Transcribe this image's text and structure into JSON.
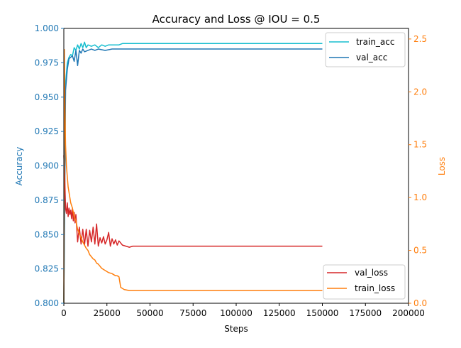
{
  "chart_data": {
    "type": "line",
    "title": "Accuracy and Loss @ IOU = 0.5",
    "xlabel": "Steps",
    "ylabel_left": "Accuracy",
    "ylabel_right": "Loss",
    "xlim": [
      0,
      200000
    ],
    "ylim_left": [
      0.8,
      1.0
    ],
    "ylim_right": [
      0.0,
      2.6
    ],
    "x_ticks": [
      0,
      25000,
      50000,
      75000,
      100000,
      125000,
      150000,
      175000,
      200000
    ],
    "x_tick_labels": [
      "0",
      "25000",
      "50000",
      "75000",
      "100000",
      "125000",
      "150000",
      "175000",
      "200000"
    ],
    "y_left_ticks": [
      0.8,
      0.825,
      0.85,
      0.875,
      0.9,
      0.925,
      0.95,
      0.975,
      1.0
    ],
    "y_left_tick_labels": [
      "0.800",
      "0.825",
      "0.850",
      "0.875",
      "0.900",
      "0.925",
      "0.950",
      "0.975",
      "1.000"
    ],
    "y_right_ticks": [
      0.0,
      0.5,
      1.0,
      1.5,
      2.0,
      2.5
    ],
    "y_right_tick_labels": [
      "0.0",
      "0.5",
      "1.0",
      "1.5",
      "2.0",
      "2.5"
    ],
    "left_axis_color": "#1f77b4",
    "right_axis_color": "#ff7f0e",
    "legend_top": {
      "placement": "top-right",
      "entries": [
        "train_acc",
        "val_acc"
      ]
    },
    "legend_bottom": {
      "placement": "bottom-right",
      "entries": [
        "val_loss",
        "train_loss"
      ]
    },
    "series": [
      {
        "name": "train_acc",
        "axis": "left",
        "color": "#17becf",
        "x": [
          0,
          1000,
          2000,
          3000,
          4000,
          5000,
          6000,
          7000,
          8000,
          9000,
          10000,
          11000,
          12000,
          13000,
          14000,
          16000,
          18000,
          20000,
          22000,
          24000,
          26000,
          28000,
          30000,
          32000,
          34000,
          36000,
          40000,
          50000,
          75000,
          100000,
          125000,
          150000
        ],
        "y": [
          0.8,
          0.96,
          0.975,
          0.979,
          0.981,
          0.98,
          0.986,
          0.984,
          0.988,
          0.985,
          0.989,
          0.986,
          0.99,
          0.986,
          0.988,
          0.987,
          0.988,
          0.986,
          0.988,
          0.987,
          0.988,
          0.988,
          0.988,
          0.988,
          0.989,
          0.989,
          0.989,
          0.989,
          0.989,
          0.989,
          0.989,
          0.989
        ]
      },
      {
        "name": "val_acc",
        "axis": "left",
        "color": "#1f77b4",
        "x": [
          0,
          1000,
          2000,
          3000,
          4000,
          5000,
          6000,
          7000,
          8000,
          9000,
          10000,
          11000,
          12000,
          14000,
          16000,
          18000,
          20000,
          24000,
          28000,
          32000,
          36000,
          40000,
          50000,
          75000,
          100000,
          125000,
          150000
        ],
        "y": [
          0.8,
          0.955,
          0.97,
          0.978,
          0.979,
          0.98,
          0.976,
          0.984,
          0.973,
          0.984,
          0.982,
          0.985,
          0.983,
          0.984,
          0.985,
          0.984,
          0.985,
          0.984,
          0.985,
          0.985,
          0.985,
          0.985,
          0.985,
          0.985,
          0.985,
          0.985,
          0.985
        ]
      },
      {
        "name": "val_loss",
        "axis": "right",
        "color": "#d62728",
        "x": [
          0,
          500,
          1000,
          1500,
          2000,
          2500,
          3000,
          3500,
          4000,
          4500,
          5000,
          5500,
          6000,
          6500,
          7000,
          8000,
          9000,
          10000,
          11000,
          12000,
          13000,
          14000,
          15000,
          16000,
          17000,
          18000,
          19000,
          20000,
          21000,
          22000,
          23000,
          24000,
          25000,
          26000,
          27000,
          28000,
          29000,
          30000,
          31000,
          32000,
          34000,
          36000,
          38000,
          40000,
          45000,
          50000,
          75000,
          100000,
          125000,
          150000
        ],
        "y": [
          1.4,
          1.2,
          0.9,
          0.85,
          0.95,
          0.82,
          0.9,
          0.84,
          0.88,
          0.8,
          0.9,
          0.78,
          0.86,
          0.76,
          0.84,
          0.58,
          0.72,
          0.56,
          0.7,
          0.55,
          0.7,
          0.54,
          0.69,
          0.58,
          0.72,
          0.56,
          0.75,
          0.54,
          0.62,
          0.57,
          0.63,
          0.56,
          0.6,
          0.67,
          0.54,
          0.61,
          0.56,
          0.6,
          0.55,
          0.59,
          0.55,
          0.54,
          0.53,
          0.54,
          0.54,
          0.54,
          0.54,
          0.54,
          0.54,
          0.54
        ]
      },
      {
        "name": "train_loss",
        "axis": "right",
        "color": "#ff7f0e",
        "x": [
          0,
          300,
          600,
          1000,
          1500,
          2000,
          2500,
          3000,
          4000,
          5000,
          6000,
          7000,
          8000,
          9000,
          10000,
          11000,
          12000,
          13000,
          14000,
          15000,
          16000,
          17000,
          18000,
          19000,
          20000,
          22000,
          24000,
          26000,
          28000,
          30000,
          31000,
          32000,
          33000,
          35000,
          38000,
          40000,
          45000,
          50000,
          60000,
          75000,
          90000,
          100000,
          110000,
          125000,
          140000,
          150000
        ],
        "y": [
          0.0,
          2.4,
          1.9,
          1.5,
          1.3,
          1.2,
          1.1,
          1.05,
          0.95,
          0.9,
          0.82,
          0.78,
          0.7,
          0.66,
          0.62,
          0.58,
          0.55,
          0.52,
          0.5,
          0.46,
          0.44,
          0.42,
          0.41,
          0.38,
          0.37,
          0.33,
          0.31,
          0.29,
          0.28,
          0.26,
          0.26,
          0.25,
          0.15,
          0.13,
          0.12,
          0.12,
          0.12,
          0.12,
          0.12,
          0.12,
          0.12,
          0.12,
          0.12,
          0.12,
          0.12,
          0.12
        ]
      }
    ]
  }
}
